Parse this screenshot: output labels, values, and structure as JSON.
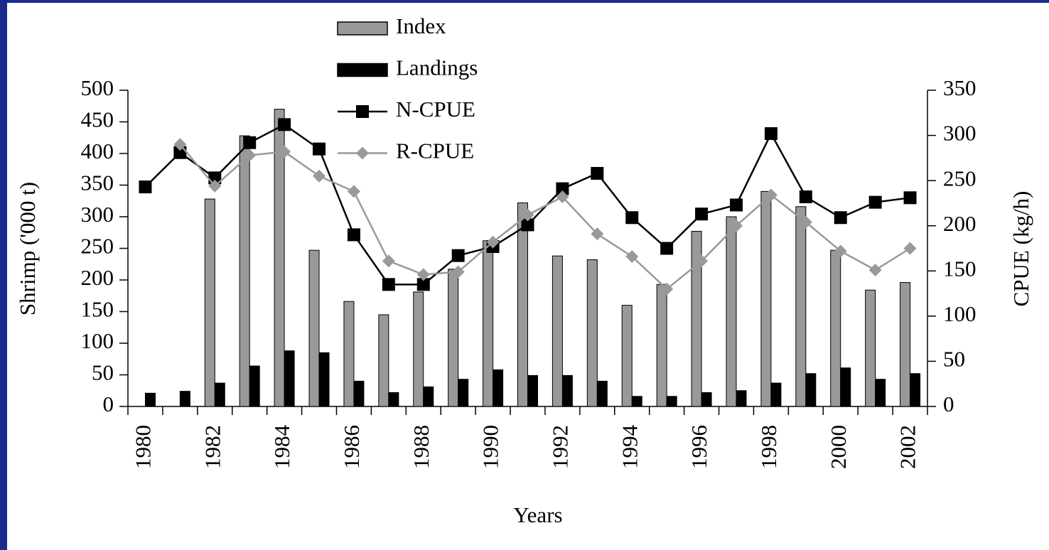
{
  "chart_data": {
    "type": "bar",
    "x_label": "Years",
    "y_label": "Shrimp ('000 t)",
    "y2_label": "CPUE (kg/h)",
    "categories": [
      "1980",
      null,
      "1982",
      null,
      "1984",
      null,
      "1986",
      null,
      "1988",
      null,
      "1990",
      null,
      "1992",
      null,
      "1994",
      null,
      "1996",
      null,
      "1998",
      null,
      "2000",
      null,
      "2002"
    ],
    "ylim": [
      0,
      500
    ],
    "yticks": [
      0,
      50,
      100,
      150,
      200,
      250,
      300,
      350,
      400,
      450,
      500
    ],
    "y2lim": [
      0,
      350
    ],
    "y2ticks": [
      0,
      50,
      100,
      150,
      200,
      250,
      300,
      350
    ],
    "series": [
      {
        "name": "Index",
        "type": "bar",
        "color": "#999999",
        "values": [
          null,
          null,
          328,
          428,
          470,
          247,
          166,
          145,
          181,
          217,
          262,
          322,
          238,
          232,
          160,
          193,
          277,
          300,
          340,
          316,
          247,
          184,
          196
        ]
      },
      {
        "name": "Landings",
        "type": "bar",
        "color": "#000000",
        "values": [
          21,
          24,
          37,
          64,
          88,
          85,
          40,
          22,
          31,
          43,
          58,
          49,
          49,
          40,
          16,
          16,
          22,
          25,
          37,
          52,
          61,
          43,
          52
        ]
      },
      {
        "name": "N-CPUE",
        "type": "line",
        "axis": "y2",
        "marker": "square",
        "color": "#000000",
        "values": [
          243,
          281,
          253,
          292,
          312,
          285,
          190,
          135,
          135,
          167,
          177,
          201,
          241,
          258,
          209,
          175,
          213,
          223,
          302,
          232,
          209,
          226,
          231
        ]
      },
      {
        "name": "R-CPUE",
        "type": "line",
        "axis": "y2",
        "marker": "diamond",
        "color": "#999999",
        "values": [
          null,
          290,
          244,
          278,
          282,
          255,
          238,
          161,
          146,
          149,
          182,
          212,
          232,
          191,
          166,
          130,
          161,
          200,
          234,
          204,
          172,
          151,
          175
        ]
      }
    ]
  }
}
